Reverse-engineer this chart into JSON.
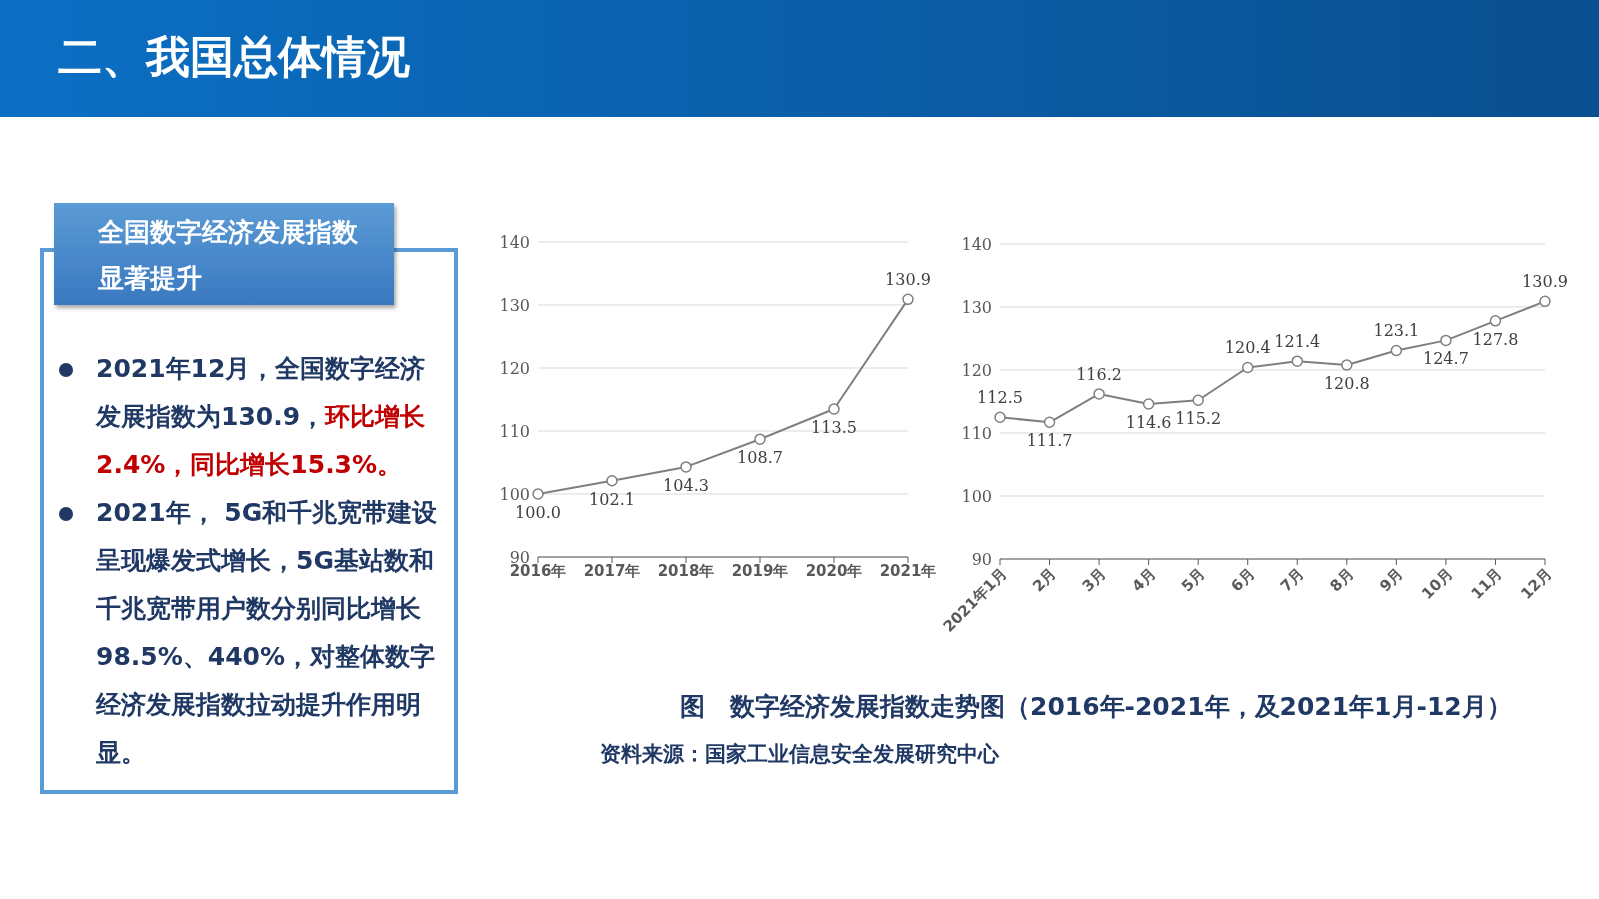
{
  "chart_data": [
    {
      "type": "other",
      "title": "二、我国总体情况",
      "subtitle": "全国数字经济发展指数显著提升",
      "annotations": [
        "2021年12月，全国数字经济发展指数为130.9，",
        "环比增长2.4%，同比增长15.3%。",
        "2021年， 5G和千兆宽带建设呈现爆发式增长，5G基站数和千兆宽带用户数分别同比增长98.5%、440%，对整体数字经济发展指数拉动提升作用明显。"
      ]
    },
    {
      "type": "line",
      "categories": [
        "2016年",
        "2017年",
        "2018年",
        "2019年",
        "2020年",
        "2021年"
      ],
      "values": [
        100.0,
        102.1,
        104.3,
        108.7,
        113.5,
        130.9
      ],
      "value_labels": [
        "100.0",
        "102.1",
        "104.3",
        "108.7",
        "113.5",
        "130.9"
      ],
      "color": "#7f7f7f",
      "ylim": [
        90,
        140
      ],
      "yticks": [
        90,
        100,
        110,
        120,
        130,
        140
      ],
      "grid": "y",
      "marker": "circle"
    },
    {
      "type": "line",
      "categories": [
        "2021年1月",
        "2月",
        "3月",
        "4月",
        "5月",
        "6月",
        "7月",
        "8月",
        "9月",
        "10月",
        "11月",
        "12月"
      ],
      "values": [
        112.5,
        111.7,
        116.2,
        114.6,
        115.2,
        120.4,
        121.4,
        120.8,
        123.1,
        124.7,
        127.8,
        130.9
      ],
      "value_labels": [
        "112.5",
        "111.7",
        "116.2",
        "114.6",
        "115.2",
        "120.4",
        "121.4",
        "120.8",
        "123.1",
        "124.7",
        "127.8",
        "130.9"
      ],
      "color": "#7f7f7f",
      "ylim": [
        90,
        140
      ],
      "yticks": [
        90,
        100,
        110,
        120,
        130,
        140
      ],
      "grid": "y",
      "marker": "circle",
      "annotations": [
        "图　数字经济发展指数走势图（2016年-2021年，及2021年1月-12月）",
        "资料来源：国家工业信息安全发展研究中心"
      ]
    }
  ]
}
